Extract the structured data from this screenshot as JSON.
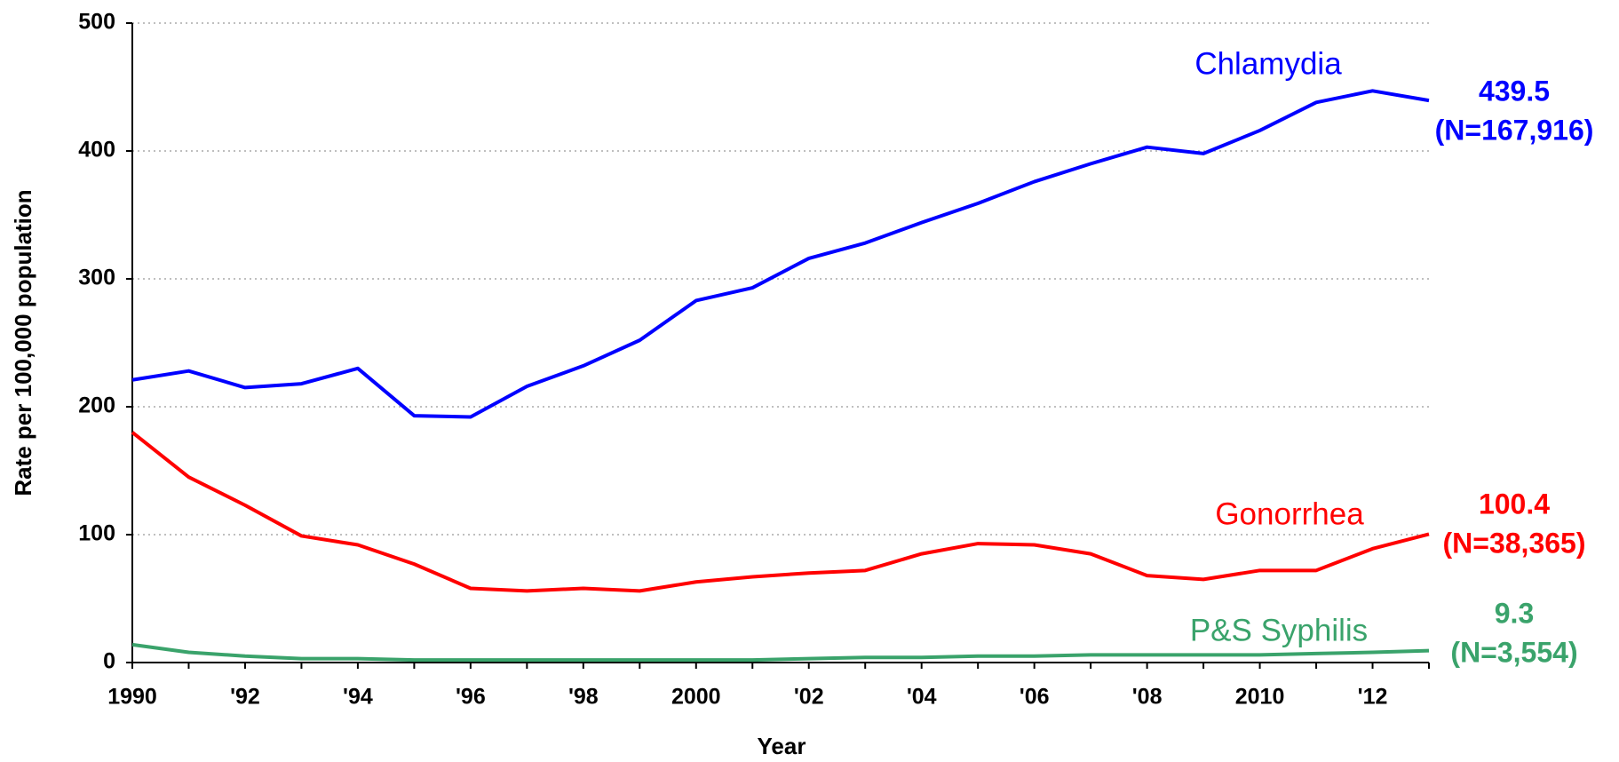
{
  "chart_data": {
    "type": "line",
    "x_label": "Year",
    "y_label": "Rate per 100,000 population",
    "categories": [
      "1990",
      null,
      "'92",
      null,
      "'94",
      null,
      "'96",
      null,
      "'98",
      null,
      "2000",
      null,
      "'02",
      null,
      "'04",
      null,
      "'06",
      null,
      "'08",
      null,
      "2010",
      null,
      "'12",
      null
    ],
    "ylim": [
      0,
      500
    ],
    "yticks": [
      0,
      100,
      200,
      300,
      400,
      500
    ],
    "grid": true,
    "series": [
      {
        "name": "Chlamydia",
        "color": "#0000ff",
        "values": [
          221,
          228,
          215,
          218,
          230,
          193,
          192,
          216,
          232,
          252,
          283,
          293,
          316,
          328,
          344,
          359,
          376,
          390,
          403,
          398,
          416,
          438,
          447,
          439.5
        ],
        "end_labels": [
          "439.5",
          "(N=167,916)"
        ]
      },
      {
        "name": "Gonorrhea",
        "color": "#ff0000",
        "values": [
          180,
          145,
          123,
          99,
          92,
          77,
          58,
          56,
          58,
          56,
          63,
          67,
          70,
          72,
          85,
          93,
          92,
          85,
          68,
          65,
          72,
          72,
          89,
          100.4
        ],
        "end_labels": [
          "100.4",
          "(N=38,365)"
        ]
      },
      {
        "name": "P&S Syphilis",
        "color": "#3aa36b",
        "values": [
          14,
          8,
          5,
          3,
          3,
          2,
          2,
          2,
          2,
          2,
          2,
          2,
          3,
          4,
          4,
          5,
          5,
          6,
          6,
          6,
          6,
          7,
          8,
          9.3
        ],
        "end_labels": [
          "9.3",
          "(N=3,554)"
        ]
      }
    ]
  }
}
